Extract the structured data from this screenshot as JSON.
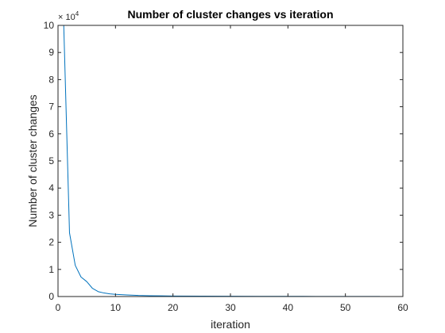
{
  "chart_data": {
    "type": "line",
    "title": "Number of cluster changes vs iteration",
    "xlabel": "iteration",
    "ylabel": "Number of cluster changes",
    "exponent_label": {
      "base": "× 10",
      "power": "4"
    },
    "xlim": [
      0,
      60
    ],
    "ylim": [
      0,
      10
    ],
    "xticks": [
      0,
      10,
      20,
      30,
      40,
      50,
      60
    ],
    "yticks": [
      0,
      1,
      2,
      3,
      4,
      5,
      6,
      7,
      8,
      9,
      10
    ],
    "grid": false,
    "line_color": "#0072BD",
    "series": [
      {
        "x": [
          1,
          2,
          3,
          4,
          5,
          6,
          7,
          8,
          9,
          10,
          12,
          14,
          16,
          18,
          20,
          25,
          30,
          35,
          40,
          45,
          50,
          56
        ],
        "values": [
          10,
          2.35,
          1.15,
          0.72,
          0.55,
          0.3,
          0.18,
          0.13,
          0.1,
          0.08,
          0.06,
          0.04,
          0.03,
          0.025,
          0.02,
          0.015,
          0.01,
          0.008,
          0.006,
          0.005,
          0.004,
          0.003
        ]
      }
    ]
  }
}
